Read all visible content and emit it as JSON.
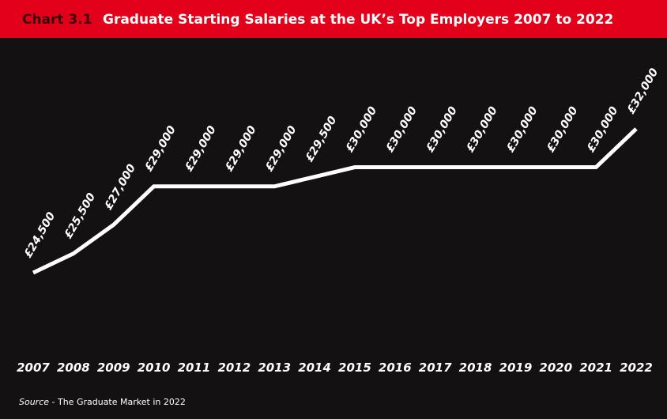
{
  "chart_data": {
    "type": "line",
    "chart_label": "Chart 3.1",
    "title": "Graduate Starting Salaries at the UK’s Top Employers 2007 to 2022",
    "categories": [
      "2007",
      "2008",
      "2009",
      "2010",
      "2011",
      "2012",
      "2013",
      "2014",
      "2015",
      "2016",
      "2017",
      "2018",
      "2019",
      "2020",
      "2021",
      "2022"
    ],
    "values": [
      24500,
      25500,
      27000,
      29000,
      29000,
      29000,
      29000,
      29500,
      30000,
      30000,
      30000,
      30000,
      30000,
      30000,
      30000,
      32000
    ],
    "value_labels": [
      "£24,500",
      "£25,500",
      "£27,000",
      "£29,000",
      "£29,000",
      "£29,000",
      "£29,000",
      "£29,500",
      "£30,000",
      "£30,000",
      "£30,000",
      "£30,000",
      "£30,000",
      "£30,000",
      "£30,000",
      "£32,000"
    ],
    "color": "#ffffff",
    "source_label": "Source",
    "source_text": " - The Graduate Market in 2022"
  }
}
